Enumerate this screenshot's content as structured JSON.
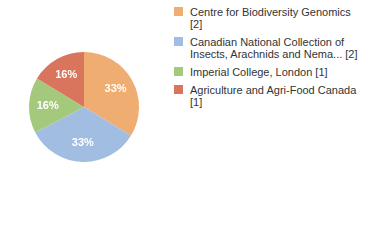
{
  "chart_data": {
    "type": "pie",
    "categories": [
      "Centre for Biodiversity Genomics [2]",
      "Canadian National Collection of Insects, Arachnids and Nema... [2]",
      "Imperial College, London [1]",
      "Agriculture and Agri-Food Canada [1]"
    ],
    "values": [
      33,
      33,
      16,
      16
    ],
    "value_labels": [
      "33%",
      "33%",
      "16%",
      "16%"
    ],
    "colors": [
      "#f0ad72",
      "#a2bde2",
      "#a4c97c",
      "#d9755c"
    ],
    "data_labels": true,
    "legend": "top-right"
  }
}
